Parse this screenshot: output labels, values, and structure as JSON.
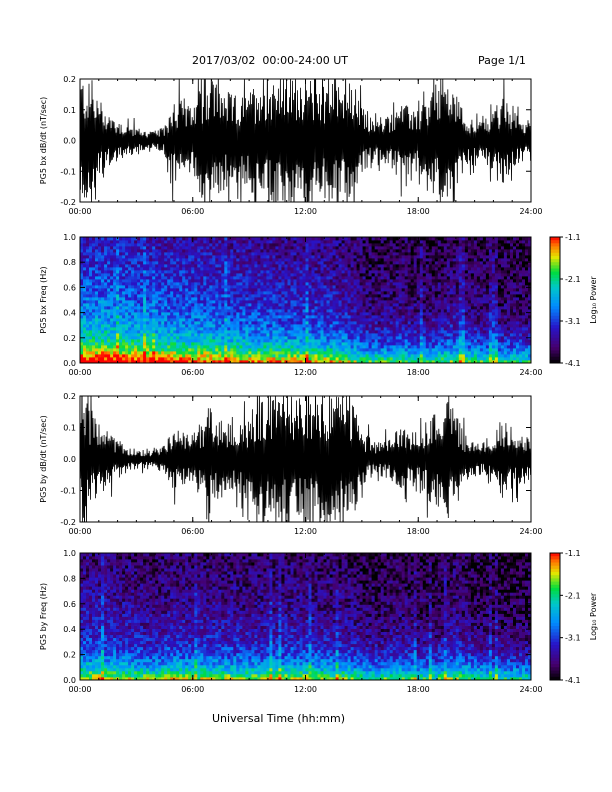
{
  "header": {
    "title": "2017/03/02  00:00-24:00 UT",
    "page": "Page 1/1"
  },
  "footer": {
    "xlabel": "Universal Time (hh:mm)"
  },
  "colorbar": {
    "label": "Log₁₀ Power",
    "ticks": [
      "-1.1",
      "-2.1",
      "-3.1",
      "-4.1"
    ],
    "range": [
      -4.1,
      -1.1
    ]
  },
  "chart_data": [
    {
      "type": "line",
      "ylabel": "PG5 bx dB/dt (nT/sec)",
      "xlim": [
        0,
        24
      ],
      "ylim": [
        -0.2,
        0.2
      ],
      "xticks": [
        "00:00",
        "06:00",
        "12:00",
        "18:00",
        "24:00"
      ],
      "yticks": [
        "-0.2",
        "-0.1",
        "0.0",
        "0.1",
        "0.2"
      ],
      "envelope": {
        "x_hours": [
          0,
          0.5,
          1,
          1.5,
          2,
          2.5,
          3,
          3.5,
          4,
          4.5,
          5,
          5.5,
          6,
          6.5,
          7,
          7.5,
          8,
          8.5,
          9,
          9.5,
          10,
          10.5,
          11,
          11.5,
          12,
          12.5,
          13,
          13.5,
          14,
          14.5,
          15,
          15.5,
          16,
          16.5,
          17,
          17.5,
          18,
          18.5,
          19,
          19.5,
          20,
          20.5,
          21,
          21.5,
          22,
          22.5,
          23,
          23.5,
          24
        ],
        "amplitude": [
          0.2,
          0.17,
          0.13,
          0.09,
          0.06,
          0.05,
          0.04,
          0.03,
          0.03,
          0.04,
          0.14,
          0.12,
          0.09,
          0.18,
          0.2,
          0.16,
          0.14,
          0.13,
          0.14,
          0.2,
          0.2,
          0.2,
          0.2,
          0.2,
          0.18,
          0.2,
          0.18,
          0.2,
          0.2,
          0.16,
          0.1,
          0.07,
          0.06,
          0.08,
          0.12,
          0.1,
          0.09,
          0.12,
          0.18,
          0.2,
          0.14,
          0.08,
          0.06,
          0.06,
          0.1,
          0.13,
          0.09,
          0.07,
          0.06
        ]
      }
    },
    {
      "type": "heatmap",
      "ylabel": "PG5 bx Freq (Hz)",
      "zlabel": "Log₁₀ Power",
      "xlim": [
        0,
        24
      ],
      "ylim": [
        0,
        1
      ],
      "zlim": [
        -4.1,
        -1.1
      ],
      "xticks": [
        "00:00",
        "06:00",
        "12:00",
        "18:00",
        "24:00"
      ],
      "yticks": [
        "0.0",
        "0.2",
        "0.4",
        "0.6",
        "0.8",
        "1.0"
      ],
      "activity": {
        "x_hours": [
          0,
          1,
          2,
          3,
          4,
          5,
          6,
          7,
          8,
          9,
          10,
          11,
          12,
          13,
          14,
          15,
          16,
          17,
          18,
          19,
          20,
          21,
          22,
          23,
          24
        ],
        "level": [
          0.95,
          1.0,
          0.95,
          0.9,
          0.85,
          0.85,
          0.8,
          0.8,
          0.75,
          0.7,
          0.7,
          0.65,
          0.65,
          0.6,
          0.55,
          0.35,
          0.3,
          0.35,
          0.3,
          0.3,
          0.4,
          0.3,
          0.25,
          0.25,
          0.2
        ]
      }
    },
    {
      "type": "line",
      "ylabel": "PG5 by dB/dt (nT/sec)",
      "xlim": [
        0,
        24
      ],
      "ylim": [
        -0.2,
        0.2
      ],
      "xticks": [
        "00:00",
        "06:00",
        "12:00",
        "18:00",
        "24:00"
      ],
      "yticks": [
        "-0.2",
        "-0.1",
        "0.0",
        "0.1",
        "0.2"
      ],
      "envelope": {
        "x_hours": [
          0,
          0.5,
          1,
          1.5,
          2,
          2.5,
          3,
          3.5,
          4,
          4.5,
          5,
          5.5,
          6,
          6.5,
          7,
          7.5,
          8,
          8.5,
          9,
          9.5,
          10,
          10.5,
          11,
          11.5,
          12,
          12.5,
          13,
          13.5,
          14,
          14.5,
          15,
          15.5,
          16,
          16.5,
          17,
          17.5,
          18,
          18.5,
          19,
          19.5,
          20,
          20.5,
          21,
          21.5,
          22,
          22.5,
          23,
          23.5,
          24
        ],
        "amplitude": [
          0.2,
          0.15,
          0.12,
          0.08,
          0.05,
          0.04,
          0.03,
          0.03,
          0.03,
          0.04,
          0.09,
          0.08,
          0.07,
          0.12,
          0.17,
          0.12,
          0.1,
          0.1,
          0.12,
          0.18,
          0.2,
          0.2,
          0.2,
          0.2,
          0.2,
          0.2,
          0.18,
          0.2,
          0.2,
          0.18,
          0.08,
          0.06,
          0.05,
          0.06,
          0.09,
          0.08,
          0.08,
          0.12,
          0.16,
          0.2,
          0.13,
          0.07,
          0.05,
          0.05,
          0.08,
          0.12,
          0.09,
          0.08,
          0.06
        ]
      }
    },
    {
      "type": "heatmap",
      "ylabel": "PG5 by Freq (Hz)",
      "zlabel": "Log₁₀ Power",
      "xlim": [
        0,
        24
      ],
      "ylim": [
        0,
        1
      ],
      "zlim": [
        -4.1,
        -1.1
      ],
      "xticks": [
        "00:00",
        "06:00",
        "12:00",
        "18:00",
        "24:00"
      ],
      "yticks": [
        "0.0",
        "0.2",
        "0.4",
        "0.6",
        "0.8",
        "1.0"
      ],
      "activity": {
        "x_hours": [
          0,
          1,
          2,
          3,
          4,
          5,
          6,
          7,
          8,
          9,
          10,
          11,
          12,
          13,
          14,
          15,
          16,
          17,
          18,
          19,
          20,
          21,
          22,
          23,
          24
        ],
        "level": [
          0.55,
          0.55,
          0.5,
          0.45,
          0.4,
          0.5,
          0.45,
          0.45,
          0.45,
          0.4,
          0.45,
          0.45,
          0.45,
          0.4,
          0.4,
          0.3,
          0.25,
          0.35,
          0.25,
          0.25,
          0.4,
          0.25,
          0.2,
          0.2,
          0.2
        ]
      }
    }
  ]
}
